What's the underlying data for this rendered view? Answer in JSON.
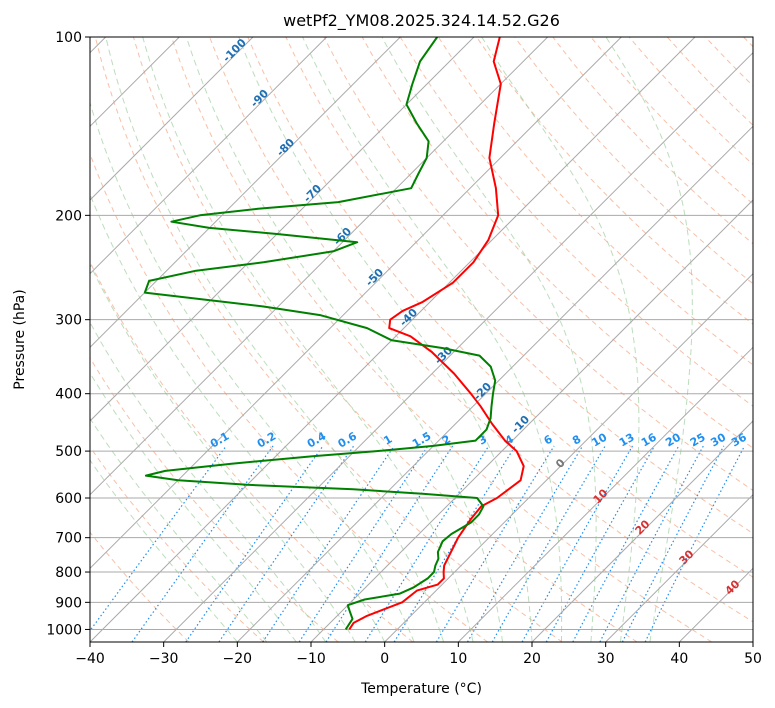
{
  "chart_data": {
    "type": "line",
    "title": "wetPf2_YM08.2025.324.14.52.G26",
    "xlabel": "Temperature (°C)",
    "ylabel": "Pressure (hPa)",
    "xlim": [
      -40,
      50
    ],
    "ylim": [
      1050,
      100
    ],
    "y_scale": "log",
    "x_ticks": [
      "−40",
      "−30",
      "−20",
      "−10",
      "0",
      "10",
      "20",
      "30",
      "40",
      "50"
    ],
    "y_ticks": [
      "100",
      "200",
      "300",
      "400",
      "500",
      "600",
      "700",
      "800",
      "900",
      "1000"
    ],
    "grid": true,
    "series": [
      {
        "color": "#ff0000",
        "points": [
          [
            1000,
            -6.5
          ],
          [
            975,
            -6.8
          ],
          [
            950,
            -6.0
          ],
          [
            900,
            -3.0
          ],
          [
            860,
            -2.6
          ],
          [
            840,
            -0.6
          ],
          [
            820,
            -0.6
          ],
          [
            800,
            -1.5
          ],
          [
            780,
            -2.3
          ],
          [
            700,
            -4.2
          ],
          [
            650,
            -5.0
          ],
          [
            620,
            -5.3
          ],
          [
            600,
            -4.3
          ],
          [
            560,
            -3.5
          ],
          [
            530,
            -5.0
          ],
          [
            500,
            -8.0
          ],
          [
            480,
            -11.0
          ],
          [
            450,
            -15.0
          ],
          [
            420,
            -19.0
          ],
          [
            400,
            -22.0
          ],
          [
            370,
            -27.0
          ],
          [
            340,
            -33.0
          ],
          [
            320,
            -38.0
          ],
          [
            310,
            -42.0
          ],
          [
            300,
            -43.0
          ],
          [
            290,
            -42.5
          ],
          [
            280,
            -41.0
          ],
          [
            260,
            -39.5
          ],
          [
            240,
            -39.5
          ],
          [
            220,
            -40.5
          ],
          [
            200,
            -42.5
          ],
          [
            180,
            -46.5
          ],
          [
            160,
            -51.5
          ],
          [
            140,
            -55.5
          ],
          [
            120,
            -60.0
          ],
          [
            110,
            -64.0
          ],
          [
            100,
            -66.5
          ]
        ]
      },
      {
        "color": "#008000",
        "points": [
          [
            1000,
            -7.0
          ],
          [
            960,
            -7.5
          ],
          [
            930,
            -9.0
          ],
          [
            910,
            -10.0
          ],
          [
            890,
            -8.5
          ],
          [
            870,
            -4.5
          ],
          [
            850,
            -3.5
          ],
          [
            820,
            -2.8
          ],
          [
            800,
            -2.8
          ],
          [
            780,
            -3.5
          ],
          [
            760,
            -4.0
          ],
          [
            740,
            -5.0
          ],
          [
            710,
            -5.8
          ],
          [
            690,
            -5.6
          ],
          [
            660,
            -4.5
          ],
          [
            640,
            -4.5
          ],
          [
            620,
            -5.0
          ],
          [
            600,
            -7.0
          ],
          [
            590,
            -15.0
          ],
          [
            580,
            -25.0
          ],
          [
            570,
            -40.0
          ],
          [
            560,
            -50.0
          ],
          [
            550,
            -55.0
          ],
          [
            540,
            -53.0
          ],
          [
            525,
            -45.0
          ],
          [
            510,
            -35.0
          ],
          [
            500,
            -27.0
          ],
          [
            490,
            -20.0
          ],
          [
            480,
            -15.0
          ],
          [
            460,
            -15.0
          ],
          [
            440,
            -16.0
          ],
          [
            420,
            -17.5
          ],
          [
            400,
            -19.0
          ],
          [
            380,
            -20.5
          ],
          [
            360,
            -23.0
          ],
          [
            345,
            -26.0
          ],
          [
            335,
            -32.0
          ],
          [
            325,
            -40.0
          ],
          [
            310,
            -45.0
          ],
          [
            295,
            -53.0
          ],
          [
            285,
            -62.0
          ],
          [
            270,
            -80.0
          ],
          [
            258,
            -81.0
          ],
          [
            248,
            -76.0
          ],
          [
            240,
            -68.0
          ],
          [
            230,
            -60.0
          ],
          [
            222,
            -58.0
          ],
          [
            215,
            -70.0
          ],
          [
            210,
            -80.0
          ],
          [
            205,
            -86.0
          ],
          [
            200,
            -83.0
          ],
          [
            195,
            -76.0
          ],
          [
            190,
            -66.0
          ],
          [
            180,
            -58.0
          ],
          [
            170,
            -59.0
          ],
          [
            160,
            -60.0
          ],
          [
            150,
            -62.0
          ],
          [
            140,
            -66.0
          ],
          [
            130,
            -70.0
          ],
          [
            120,
            -72.0
          ],
          [
            110,
            -74.0
          ],
          [
            100,
            -75.0
          ]
        ]
      }
    ],
    "isotherm_labels": [
      "-100",
      "-90",
      "-80",
      "-70",
      "-60",
      "-50",
      "-40",
      "-30",
      "-20",
      "-10"
    ],
    "mixing_ratio_labels": [
      "0.1",
      "0.2",
      "0.4",
      "0.6",
      "1",
      "1.5",
      "2",
      "3",
      "4",
      "6",
      "8",
      "10",
      "13",
      "16",
      "20",
      "25",
      "30",
      "36"
    ],
    "theta_e_labels": [
      "0",
      "10",
      "20",
      "30",
      "40"
    ],
    "colors": {
      "temperature": "#ff0000",
      "dewpoint": "#008000",
      "dry_adiabat": "#f4a582",
      "moist_adiabat": "#9fcf9f",
      "mixing_ratio": "#1f8ff0",
      "isotherm_label": "#1f6fb4",
      "theta_e_label": "#d73030",
      "grid": "#aaaaaa"
    }
  }
}
